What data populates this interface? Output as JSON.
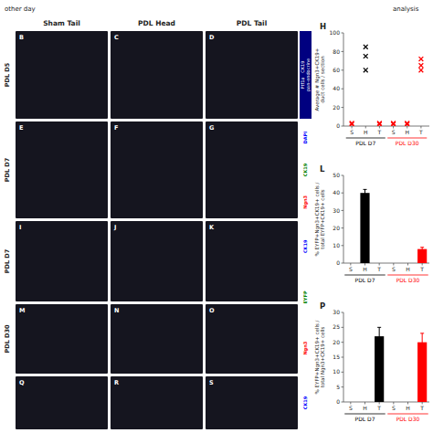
{
  "chart_data": [
    {
      "type": "scatter",
      "title": "H",
      "y_label": "Average # Ngn3+CK19+\nduct cells / section",
      "xlim": [
        -0.6,
        5.6
      ],
      "xticks": [
        {
          "value": 0,
          "label": "S"
        },
        {
          "value": 1,
          "label": "H"
        },
        {
          "value": 2,
          "label": "T"
        },
        {
          "value": 3,
          "label": "S"
        },
        {
          "value": 4,
          "label": "H"
        },
        {
          "value": 5,
          "label": "T"
        }
      ],
      "ylim": [
        0,
        100
      ],
      "yticks": [
        0,
        20,
        40,
        60,
        80,
        100
      ],
      "marker": "x",
      "grid": false,
      "series": [
        {
          "color": "black",
          "x": [
            1,
            1,
            1
          ],
          "values": [
            60,
            75,
            85
          ]
        },
        {
          "color": "red",
          "x": [
            0,
            0,
            2,
            2,
            3,
            3,
            4,
            4,
            5,
            5,
            5
          ],
          "values": [
            2,
            3,
            2,
            3,
            2,
            3,
            2,
            3,
            65,
            72,
            60
          ]
        }
      ],
      "annotations": [
        {
          "text": "PDL D7",
          "color": "black"
        },
        {
          "text": "PDL D30",
          "color": "red"
        }
      ]
    },
    {
      "type": "bar",
      "title": "L",
      "y_label": "% EYFP+Ngn3+CK19+ cells /\ntotal EYFP+CK19+ cells",
      "categories": [
        "S",
        "H",
        "T",
        "S",
        "H",
        "T"
      ],
      "values": [
        0,
        40,
        0,
        0,
        0,
        8
      ],
      "errors": [
        0,
        2,
        0,
        0,
        0,
        1
      ],
      "colors": [
        "black",
        "black",
        "black",
        "red",
        "red",
        "red"
      ],
      "ylim": [
        0,
        50
      ],
      "yticks": [
        0,
        10,
        20,
        30,
        40,
        50
      ],
      "grid": false,
      "annotations": [
        {
          "text": "PDL D7",
          "color": "black"
        },
        {
          "text": "PDL D30",
          "color": "red"
        }
      ]
    },
    {
      "type": "bar",
      "title": "P",
      "y_label": "% EYFP+Ngn3+CK19+ cells /\ntotal Ngn3+CK19+ cells",
      "categories": [
        "S",
        "H",
        "T",
        "S",
        "H",
        "T"
      ],
      "values": [
        0,
        0,
        22,
        0,
        0,
        20
      ],
      "errors": [
        0,
        0,
        3,
        0,
        0,
        3
      ],
      "colors": [
        "black",
        "black",
        "black",
        "red",
        "red",
        "red"
      ],
      "ylim": [
        0,
        30
      ],
      "yticks": [
        0,
        5,
        10,
        15,
        20,
        25,
        30
      ],
      "grid": false,
      "annotations": [
        {
          "text": "PDL D7",
          "color": "black"
        },
        {
          "text": "PDL D30",
          "color": "red"
        }
      ]
    }
  ],
  "figure": {
    "header": [
      "other day",
      "analysis"
    ],
    "column_headers": [
      "Sham Tail",
      "PDL Head",
      "PDL Tail"
    ],
    "row_labels": [
      "PDL D5",
      "PDL D7",
      "PDL D7",
      "PDL D30"
    ],
    "panel_letters": [
      [
        "B",
        "C",
        "D"
      ],
      [
        "E",
        "F",
        "G"
      ],
      [
        "I",
        "J",
        "K"
      ],
      [
        "M",
        "N",
        "O"
      ],
      [
        "Q",
        "R",
        "S"
      ]
    ],
    "side_labels": [
      {
        "texts": [
          "Ptf1a   CK19\npan-endocrine"
        ],
        "colors": [
          "white"
        ],
        "background": "#000080"
      },
      {
        "texts": [
          "DAPI",
          "CK19",
          "Ngn3"
        ],
        "colors": [
          "blue",
          "green",
          "red"
        ]
      },
      {
        "texts": [
          "CK19",
          "EYFP",
          "Ngn3"
        ],
        "colors": [
          "blue",
          "green",
          "red"
        ]
      },
      {
        "texts": [
          "CK19"
        ],
        "colors": [
          "blue"
        ]
      }
    ]
  }
}
